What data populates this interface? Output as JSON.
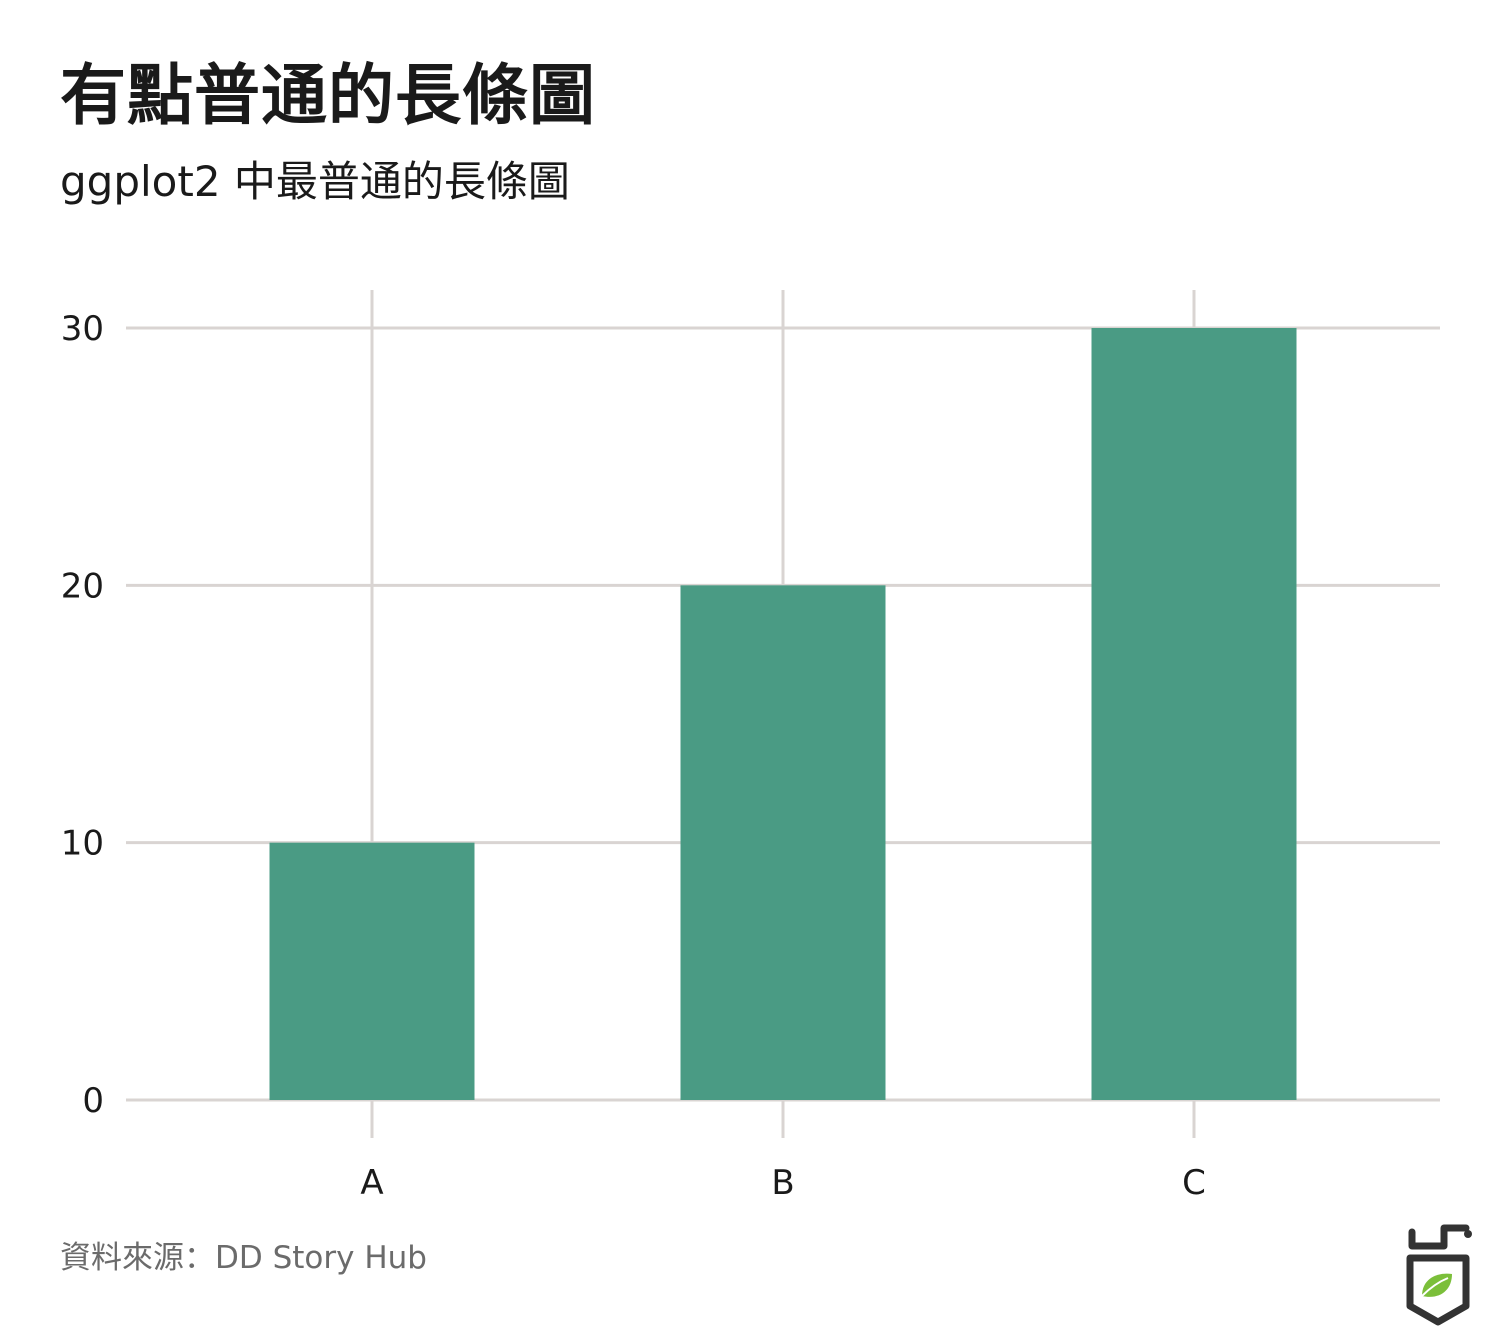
{
  "title": "有點普通的長條圖",
  "subtitle": "ggplot2 中最普通的長條圖",
  "caption": "資料來源：DD Story Hub",
  "logo": {
    "icon": "dd-story-hub-logo-icon"
  },
  "colors": {
    "bar": "#4a9b84",
    "grid": "#d9d4d2",
    "text": "#1a1a1a",
    "caption": "#6b6b6b"
  },
  "chart_data": {
    "type": "bar",
    "categories": [
      "A",
      "B",
      "C"
    ],
    "values": [
      10,
      20,
      30
    ],
    "title": "有點普通的長條圖",
    "subtitle": "ggplot2 中最普通的長條圖",
    "xlabel": "",
    "ylabel": "",
    "ylim": [
      0,
      30
    ],
    "yticks": [
      0,
      10,
      20,
      30
    ],
    "grid": true,
    "legend": "none"
  }
}
